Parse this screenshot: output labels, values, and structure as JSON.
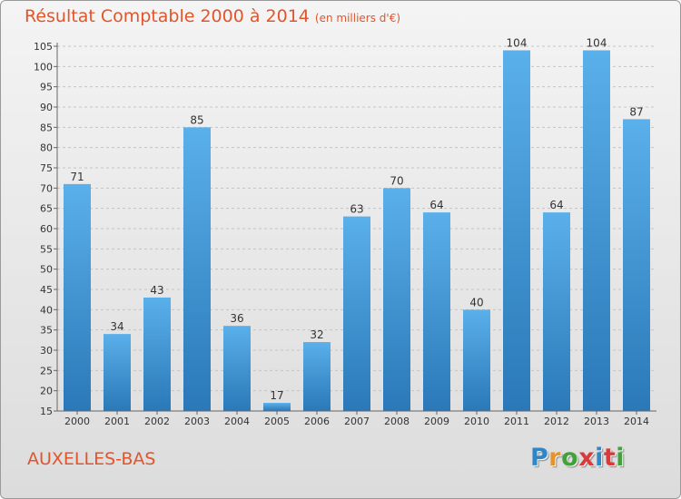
{
  "header": {
    "title": "Résultat Comptable 2000 à 2014",
    "subtitle": "(en milliers d'€)"
  },
  "footer": {
    "commune": "AUXELLES-BAS",
    "logo_text": "Proxiti",
    "logo_colors": [
      "#2e87c8",
      "#e8922b",
      "#43a03c",
      "#d93b3b",
      "#2e87c8",
      "#d93b3b",
      "#43a03c"
    ]
  },
  "colors": {
    "title": "#e2552b",
    "bar_top": "#5ab0ea",
    "bar_bottom": "#2a78b8"
  },
  "chart_data": {
    "type": "bar",
    "categories": [
      "2000",
      "2001",
      "2002",
      "2003",
      "2004",
      "2005",
      "2006",
      "2007",
      "2008",
      "2009",
      "2010",
      "2011",
      "2012",
      "2013",
      "2014"
    ],
    "values": [
      71,
      34,
      43,
      85,
      36,
      17,
      32,
      63,
      70,
      64,
      40,
      104,
      64,
      104,
      87
    ],
    "yticks": [
      15,
      20,
      25,
      30,
      35,
      40,
      45,
      50,
      55,
      60,
      65,
      70,
      75,
      80,
      85,
      90,
      95,
      100,
      105
    ],
    "ylim": [
      15,
      105
    ],
    "grid": "horizontal dashed",
    "legend": "none"
  }
}
